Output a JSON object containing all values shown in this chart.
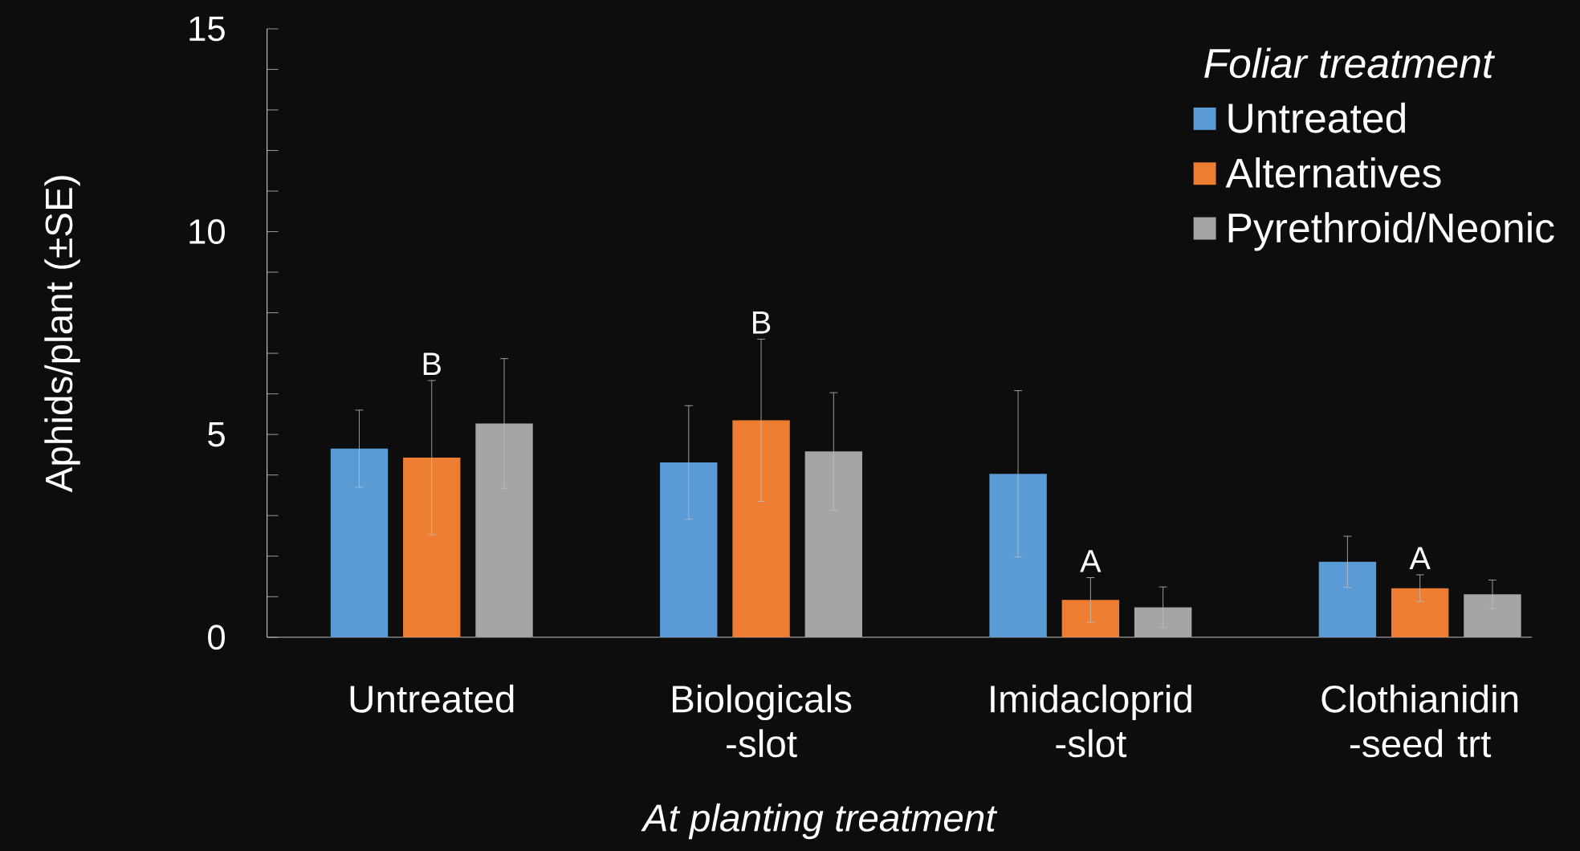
{
  "chart_data": {
    "type": "bar",
    "ylabel": "Aphids/plant (±SE)",
    "xlabel": "At planting treatment",
    "legend_title": "Foliar treatment",
    "categories": [
      "Untreated",
      "Biologicals -slot",
      "Imidacloprid -slot",
      "Clothianidin -seed trt"
    ],
    "series": [
      {
        "name": "Untreated",
        "color": "#5b9bd5",
        "values": [
          4.65,
          4.31,
          4.03,
          1.86
        ],
        "errors": [
          0.95,
          1.4,
          2.05,
          0.63
        ]
      },
      {
        "name": "Alternatives",
        "color": "#ed7d31",
        "values": [
          4.43,
          5.35,
          0.92,
          1.21
        ],
        "errors": [
          1.9,
          2.0,
          0.55,
          0.33
        ]
      },
      {
        "name": "Pyrethroid/Neonic",
        "color": "#a5a5a5",
        "values": [
          5.27,
          4.58,
          0.74,
          1.06
        ],
        "errors": [
          1.6,
          1.45,
          0.5,
          0.35
        ]
      }
    ],
    "ylim": [
      0,
      15
    ],
    "yticks": [
      0,
      {
        "value": 1,
        "label": null
      },
      {
        "value": 2,
        "label": null
      },
      {
        "value": 3,
        "label": null
      },
      {
        "value": 4,
        "label": null
      },
      5,
      {
        "value": 6,
        "label": null
      },
      {
        "value": 7,
        "label": null
      },
      {
        "value": 8,
        "label": null
      },
      {
        "value": 9,
        "label": null
      },
      10,
      {
        "value": 11,
        "label": null
      },
      {
        "value": 12,
        "label": null
      },
      {
        "value": 13,
        "label": null
      },
      {
        "value": 14,
        "label": null
      },
      15
    ],
    "annotations": [
      "B",
      "B",
      "A",
      "A"
    ],
    "legend": "top right"
  }
}
